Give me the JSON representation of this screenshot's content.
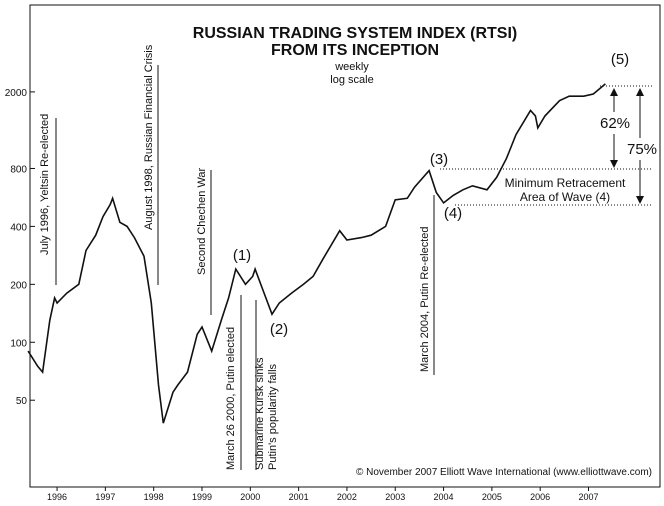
{
  "chart_data": {
    "type": "line",
    "title": [
      "RUSSIAN TRADING SYSTEM INDEX (RTSI)",
      "FROM ITS INCEPTION"
    ],
    "subtitle": [
      "weekly",
      "log scale"
    ],
    "log_scale": true,
    "color": "#111111",
    "x": [
      1995.9,
      1996.1,
      1996.2,
      1996.35,
      1996.45,
      1996.5,
      1996.7,
      1996.95,
      1997.1,
      1997.3,
      1997.45,
      1997.6,
      1997.65,
      1997.8,
      1997.95,
      1998.1,
      1998.3,
      1998.45,
      1998.6,
      1998.7,
      1998.9,
      1999.0,
      1999.2,
      1999.4,
      1999.5,
      1999.7,
      1999.9,
      2000.05,
      2000.2,
      2000.4,
      2000.55,
      2000.6,
      2000.75,
      2000.95,
      2001.1,
      2001.35,
      2001.6,
      2001.8,
      2002.0,
      2002.35,
      2002.5,
      2002.8,
      2003.0,
      2003.3,
      2003.5,
      2003.75,
      2003.9,
      2004.2,
      2004.35,
      2004.5,
      2004.7,
      2004.9,
      2005.1,
      2005.4,
      2005.6,
      2005.8,
      2006.0,
      2006.3,
      2006.4,
      2006.45,
      2006.6,
      2006.9,
      2007.1,
      2007.4,
      2007.6,
      2007.85
    ],
    "values": [
      90,
      75,
      70,
      130,
      170,
      160,
      180,
      200,
      300,
      360,
      450,
      520,
      560,
      420,
      400,
      350,
      280,
      160,
      60,
      38,
      55,
      60,
      70,
      110,
      120,
      90,
      130,
      170,
      240,
      200,
      220,
      240,
      190,
      140,
      160,
      180,
      200,
      220,
      270,
      380,
      340,
      350,
      360,
      400,
      550,
      560,
      640,
      780,
      600,
      530,
      580,
      620,
      650,
      620,
      720,
      900,
      1200,
      1600,
      1500,
      1300,
      1500,
      1800,
      1900,
      1900,
      1950,
      2200
    ],
    "xlim": [
      1995.94,
      2008.98
    ],
    "ylim": [
      17.7,
      5657
    ],
    "yticks": [
      50,
      100,
      200,
      400,
      800,
      2000
    ],
    "xticks": [
      {
        "value": 1996.5,
        "label": "1996"
      },
      {
        "value": 1997.5,
        "label": "1997"
      },
      {
        "value": 1998.5,
        "label": "1998"
      },
      {
        "value": 1999.5,
        "label": "1999"
      },
      {
        "value": 2000.5,
        "label": "2000"
      },
      {
        "value": 2001.5,
        "label": "2001"
      },
      {
        "value": 2002.5,
        "label": "2002"
      },
      {
        "value": 2003.5,
        "label": "2003"
      },
      {
        "value": 2004.5,
        "label": "2004"
      },
      {
        "value": 2005.5,
        "label": "2005"
      },
      {
        "value": 2006.5,
        "label": "2006"
      },
      {
        "value": 2007.5,
        "label": "2007"
      }
    ],
    "annotations": [
      "July 1996, Yeltsin Re-elected",
      "August 1998, Russian Financial Crisis",
      "Second Chechen War",
      "March 26 2000, Putin elected",
      "Submarine Kursk sinks",
      "Putin's popularity falls",
      "March 2004, Putin Re-elected",
      "(1)",
      "(2)",
      "(3)",
      "(4)",
      "(5)",
      "62%",
      "75%",
      "Minimum Retracement",
      "Area of Wave (4)",
      "© November 2007 Elliott Wave International (www.elliottwave.com)"
    ]
  }
}
